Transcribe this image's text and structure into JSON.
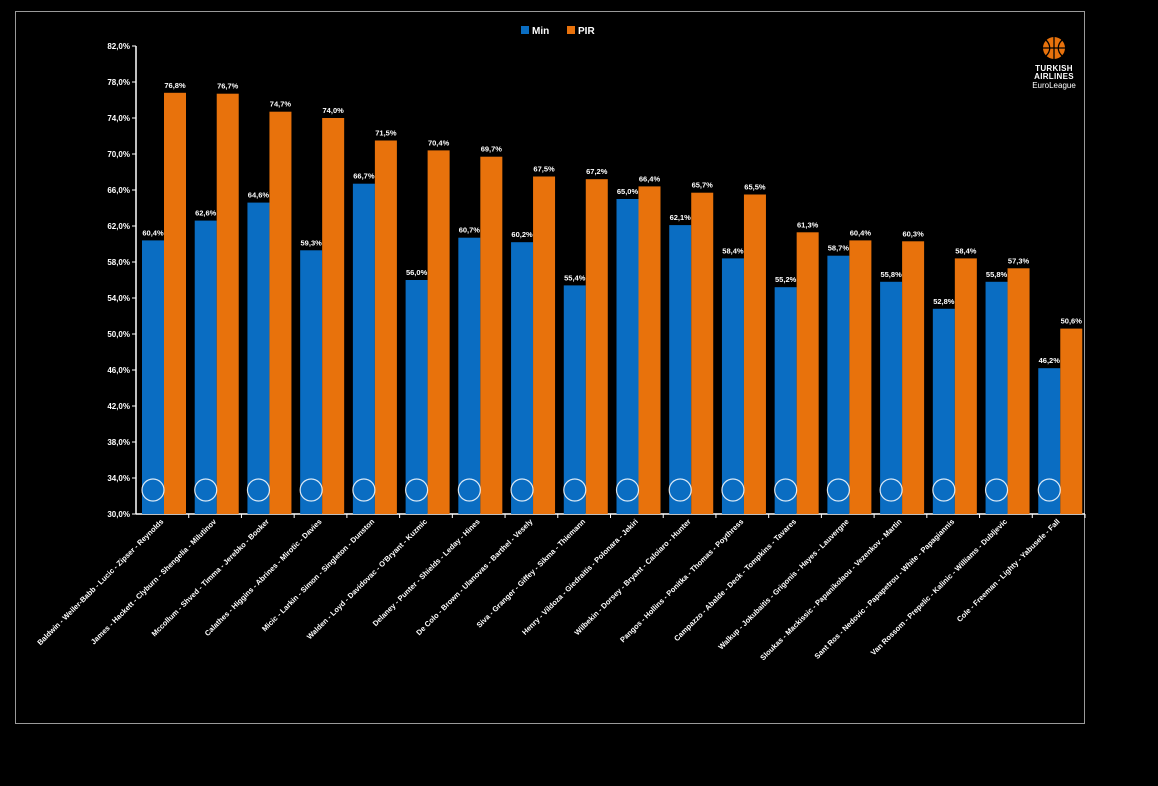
{
  "brand": {
    "line1": "TURKISH",
    "line2": "AIRLINES",
    "line3": "EuroLeague"
  },
  "colors": {
    "min": "#0A6DC2",
    "pir": "#E8720C",
    "background": "#000000",
    "text": "#FFFFFF"
  },
  "chart_data": {
    "type": "bar",
    "legend_position": "top-center",
    "grid": false,
    "ylim": [
      30,
      82
    ],
    "yticks": [
      "30,0%",
      "34,0%",
      "38,0%",
      "42,0%",
      "46,0%",
      "50,0%",
      "54,0%",
      "58,0%",
      "62,0%",
      "66,0%",
      "70,0%",
      "74,0%",
      "78,0%",
      "82,0%"
    ],
    "categories": [
      "Baldwin - Weiler-Babb - Lucic - Zipser - Reynolds",
      "James - Hackett - Clyburn - Shengelia - Milutinov",
      "Mccollum - Shved - Timma - Jerebko - Booker",
      "Calathes - Higgins - Abrines - Mirotic - Davies",
      "Micic - Larkin - Simon - Singleton - Dunston",
      "Walden - Loyd - Davidovac - O'Bryant - Kuzmic",
      "Delaney - Punter - Shields - Leday - Hines",
      "De Colo - Brown - Ulanovas - Barthel - Vesely",
      "Siva - Granger - Giffey - Sikma - Thiemann",
      "Henry - Vildoza - Giedraitis - Polonara - Jekiri",
      "Wilbekin - Dorsey - Bryant - Caloiaro - Hunter",
      "Pangos - Hollins - Ponitka - Thomas - Poythress",
      "Campazzo - Abalde - Deck - Tompkins - Tavares",
      "Walkup - Jokubaitis - Grigonis - Hayes - Lauvergne",
      "Sloukas - Mackissic - Papanikolaou - Vezenkov - Martin",
      "Sant Ros - Nedovic - Papapetrou - White - Papagiannis",
      "Van Rossom - Prepelic - Kalinic - Williams - Dubljevic",
      "Cole - Freeman - Lighty - Yabusele - Fall"
    ],
    "series": [
      {
        "name": "Min",
        "values": [
          60.4,
          62.6,
          64.6,
          59.3,
          66.7,
          56.0,
          60.7,
          60.2,
          55.4,
          65.0,
          62.1,
          58.4,
          55.2,
          58.7,
          55.8,
          52.8,
          55.8,
          46.2
        ],
        "labels": [
          "60,4%",
          "62,6%",
          "64,6%",
          "59,3%",
          "66,7%",
          "56,0%",
          "60,7%",
          "60,2%",
          "55,4%",
          "65,0%",
          "62,1%",
          "58,4%",
          "55,2%",
          "58,7%",
          "55,8%",
          "52,8%",
          "55,8%",
          "46,2%"
        ]
      },
      {
        "name": "PIR",
        "values": [
          76.8,
          76.7,
          74.7,
          74.0,
          71.5,
          70.4,
          69.7,
          67.5,
          67.2,
          66.4,
          65.7,
          65.5,
          61.3,
          60.4,
          60.3,
          58.4,
          57.3,
          50.6
        ],
        "labels": [
          "76,8%",
          "76,7%",
          "74,7%",
          "74,0%",
          "71,5%",
          "70,4%",
          "69,7%",
          "67,5%",
          "67,2%",
          "66,4%",
          "65,7%",
          "65,5%",
          "61,3%",
          "60,4%",
          "60,3%",
          "58,4%",
          "57,3%",
          "50,6%"
        ]
      }
    ],
    "team_logo_icons": [
      "bayern-logo-icon",
      "cska-logo-icon",
      "khimki-logo-icon",
      "barca-logo-icon",
      "efes-logo-icon",
      "crvena-zvezda-logo-icon",
      "olimpia-milano-logo-icon",
      "fenerbahce-logo-icon",
      "alba-logo-icon",
      "baskonia-logo-icon",
      "maccabi-logo-icon",
      "zenit-logo-icon",
      "real-madrid-logo-icon",
      "zalgiris-logo-icon",
      "olympiacos-logo-icon",
      "panathinaikos-logo-icon",
      "valencia-logo-icon",
      "asvel-logo-icon"
    ]
  }
}
